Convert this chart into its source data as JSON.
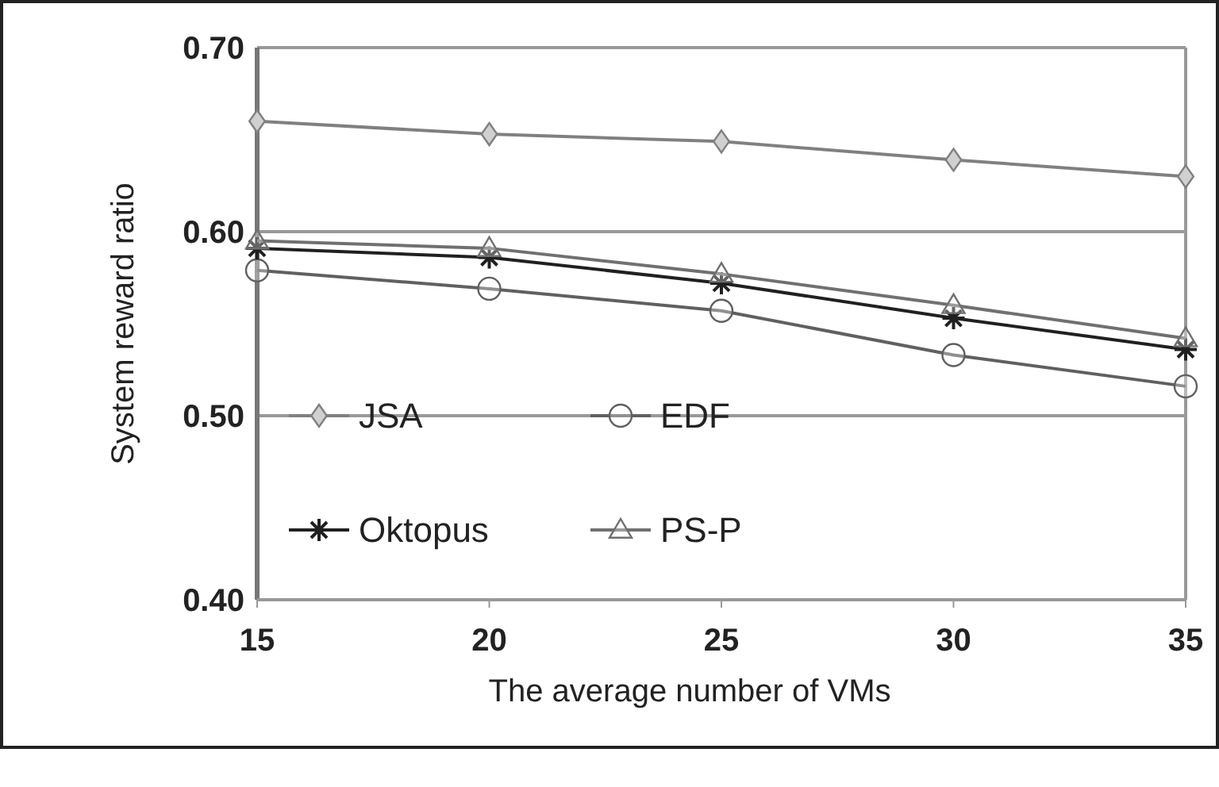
{
  "chart_data": {
    "type": "line",
    "xlabel": "The average number of VMs",
    "ylabel": "System reward ratio",
    "x": [
      15,
      20,
      25,
      30,
      35
    ],
    "xlim": [
      15,
      35
    ],
    "xticks": [
      15,
      20,
      25,
      30,
      35
    ],
    "ylim": [
      0.4,
      0.7
    ],
    "yticks": [
      {
        "value": 0.4,
        "label": "0.40"
      },
      {
        "value": 0.5,
        "label": "0.50"
      },
      {
        "value": 0.6,
        "label": "0.60"
      },
      {
        "value": 0.7,
        "label": "0.70"
      }
    ],
    "grid": "y",
    "legend": "bottom left",
    "series": [
      {
        "name": "JSA",
        "color": "#808080",
        "marker": "diamond",
        "values": [
          0.66,
          0.653,
          0.649,
          0.639,
          0.63
        ]
      },
      {
        "name": "EDF",
        "color": "#606060",
        "marker": "circle",
        "values": [
          0.579,
          0.569,
          0.557,
          0.533,
          0.516
        ]
      },
      {
        "name": "Oktopus",
        "color": "#202020",
        "marker": "cross",
        "values": [
          0.591,
          0.586,
          0.572,
          0.553,
          0.536
        ]
      },
      {
        "name": "PS-P",
        "color": "#707070",
        "marker": "triangle",
        "values": [
          0.595,
          0.591,
          0.577,
          0.56,
          0.542
        ]
      }
    ]
  }
}
